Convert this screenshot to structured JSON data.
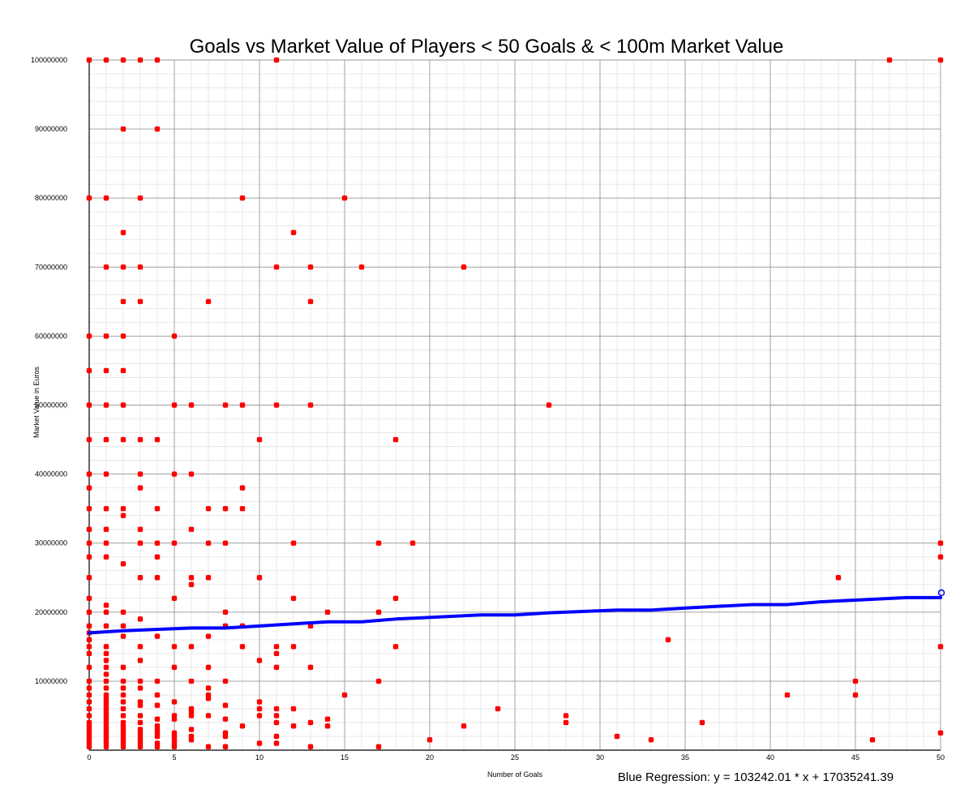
{
  "chart_data": {
    "type": "scatter",
    "title": "Goals vs Market Value of Players < 50 Goals & < 100m Market Value",
    "xlabel": "Number of Goals",
    "ylabel": "Market Value in Euros",
    "xlim": [
      0,
      50
    ],
    "ylim": [
      0,
      100000000
    ],
    "x_ticks": [
      "0",
      "5",
      "10",
      "15",
      "20",
      "25",
      "30",
      "35",
      "40",
      "45",
      "50"
    ],
    "y_ticks": [
      "10000000",
      "20000000",
      "30000000",
      "40000000",
      "50000000",
      "60000000",
      "70000000",
      "80000000",
      "90000000",
      "100000000"
    ],
    "grid": true,
    "annotation": "Blue Regression: y = 103242.01 * x + 17035241.39",
    "colors": {
      "points": "#ff0000",
      "regression": "#0000ff",
      "grid_major": "#9a9a9a",
      "grid_minor": "#e3e3e3"
    },
    "series": [
      {
        "points": [
          [
            0,
            100000000
          ],
          [
            0,
            80000000
          ],
          [
            0,
            60000000
          ],
          [
            0,
            55000000
          ],
          [
            0,
            50000000
          ],
          [
            0,
            45000000
          ],
          [
            0,
            40000000
          ],
          [
            0,
            38000000
          ],
          [
            0,
            35000000
          ],
          [
            0,
            32000000
          ],
          [
            0,
            30000000
          ],
          [
            0,
            28000000
          ],
          [
            0,
            25000000
          ],
          [
            0,
            22000000
          ],
          [
            0,
            20000000
          ],
          [
            0,
            18000000
          ],
          [
            0,
            17000000
          ],
          [
            0,
            16000000
          ],
          [
            0,
            15000000
          ],
          [
            0,
            14000000
          ],
          [
            0,
            12000000
          ],
          [
            0,
            10000000
          ],
          [
            0,
            9000000
          ],
          [
            0,
            8000000
          ],
          [
            0,
            7000000
          ],
          [
            0,
            6000000
          ],
          [
            0,
            5000000
          ],
          [
            0,
            4000000
          ],
          [
            0,
            3500000
          ],
          [
            0,
            3000000
          ],
          [
            0,
            2500000
          ],
          [
            0,
            2000000
          ],
          [
            0,
            1500000
          ],
          [
            0,
            1000000
          ],
          [
            0,
            500000
          ],
          [
            1,
            100000000
          ],
          [
            1,
            80000000
          ],
          [
            1,
            70000000
          ],
          [
            1,
            60000000
          ],
          [
            1,
            55000000
          ],
          [
            1,
            50000000
          ],
          [
            1,
            45000000
          ],
          [
            1,
            40000000
          ],
          [
            1,
            35000000
          ],
          [
            1,
            32000000
          ],
          [
            1,
            30000000
          ],
          [
            1,
            28000000
          ],
          [
            1,
            21000000
          ],
          [
            1,
            20000000
          ],
          [
            1,
            18000000
          ],
          [
            1,
            15000000
          ],
          [
            1,
            14000000
          ],
          [
            1,
            13000000
          ],
          [
            1,
            12000000
          ],
          [
            1,
            11000000
          ],
          [
            1,
            10000000
          ],
          [
            1,
            9000000
          ],
          [
            1,
            8000000
          ],
          [
            1,
            7500000
          ],
          [
            1,
            7000000
          ],
          [
            1,
            6500000
          ],
          [
            1,
            6000000
          ],
          [
            1,
            5500000
          ],
          [
            1,
            5000000
          ],
          [
            1,
            4500000
          ],
          [
            1,
            4000000
          ],
          [
            1,
            3500000
          ],
          [
            1,
            3000000
          ],
          [
            1,
            2500000
          ],
          [
            1,
            2000000
          ],
          [
            1,
            1500000
          ],
          [
            1,
            1000000
          ],
          [
            1,
            500000
          ],
          [
            2,
            100000000
          ],
          [
            2,
            90000000
          ],
          [
            2,
            75000000
          ],
          [
            2,
            70000000
          ],
          [
            2,
            65000000
          ],
          [
            2,
            60000000
          ],
          [
            2,
            55000000
          ],
          [
            2,
            50000000
          ],
          [
            2,
            45000000
          ],
          [
            2,
            35000000
          ],
          [
            2,
            34000000
          ],
          [
            2,
            27000000
          ],
          [
            2,
            20000000
          ],
          [
            2,
            18000000
          ],
          [
            2,
            16500000
          ],
          [
            2,
            12000000
          ],
          [
            2,
            10000000
          ],
          [
            2,
            9000000
          ],
          [
            2,
            8000000
          ],
          [
            2,
            7000000
          ],
          [
            2,
            6000000
          ],
          [
            2,
            5000000
          ],
          [
            2,
            4000000
          ],
          [
            2,
            3500000
          ],
          [
            2,
            3000000
          ],
          [
            2,
            2500000
          ],
          [
            2,
            2000000
          ],
          [
            2,
            1500000
          ],
          [
            2,
            1000000
          ],
          [
            2,
            500000
          ],
          [
            3,
            100000000
          ],
          [
            3,
            80000000
          ],
          [
            3,
            70000000
          ],
          [
            3,
            65000000
          ],
          [
            3,
            45000000
          ],
          [
            3,
            40000000
          ],
          [
            3,
            38000000
          ],
          [
            3,
            32000000
          ],
          [
            3,
            30000000
          ],
          [
            3,
            25000000
          ],
          [
            3,
            19000000
          ],
          [
            3,
            15000000
          ],
          [
            3,
            13000000
          ],
          [
            3,
            10000000
          ],
          [
            3,
            9000000
          ],
          [
            3,
            7000000
          ],
          [
            3,
            6500000
          ],
          [
            3,
            5000000
          ],
          [
            3,
            4000000
          ],
          [
            3,
            3000000
          ],
          [
            3,
            2500000
          ],
          [
            3,
            2000000
          ],
          [
            3,
            1500000
          ],
          [
            3,
            1000000
          ],
          [
            3,
            500000
          ],
          [
            4,
            100000000
          ],
          [
            4,
            90000000
          ],
          [
            4,
            45000000
          ],
          [
            4,
            35000000
          ],
          [
            4,
            30000000
          ],
          [
            4,
            28000000
          ],
          [
            4,
            25000000
          ],
          [
            4,
            16500000
          ],
          [
            4,
            10000000
          ],
          [
            4,
            8000000
          ],
          [
            4,
            6500000
          ],
          [
            4,
            4500000
          ],
          [
            4,
            3500000
          ],
          [
            4,
            3000000
          ],
          [
            4,
            2500000
          ],
          [
            4,
            2000000
          ],
          [
            4,
            1000000
          ],
          [
            4,
            500000
          ],
          [
            5,
            60000000
          ],
          [
            5,
            50000000
          ],
          [
            5,
            40000000
          ],
          [
            5,
            30000000
          ],
          [
            5,
            22000000
          ],
          [
            5,
            15000000
          ],
          [
            5,
            12000000
          ],
          [
            5,
            7000000
          ],
          [
            5,
            5000000
          ],
          [
            5,
            4500000
          ],
          [
            5,
            2500000
          ],
          [
            5,
            2000000
          ],
          [
            5,
            1500000
          ],
          [
            5,
            1000000
          ],
          [
            5,
            500000
          ],
          [
            6,
            50000000
          ],
          [
            6,
            40000000
          ],
          [
            6,
            32000000
          ],
          [
            6,
            25000000
          ],
          [
            6,
            24000000
          ],
          [
            6,
            15000000
          ],
          [
            6,
            10000000
          ],
          [
            6,
            6000000
          ],
          [
            6,
            5500000
          ],
          [
            6,
            5000000
          ],
          [
            6,
            3000000
          ],
          [
            6,
            2000000
          ],
          [
            6,
            1500000
          ],
          [
            7,
            65000000
          ],
          [
            7,
            35000000
          ],
          [
            7,
            30000000
          ],
          [
            7,
            25000000
          ],
          [
            7,
            16500000
          ],
          [
            7,
            12000000
          ],
          [
            7,
            9000000
          ],
          [
            7,
            8000000
          ],
          [
            7,
            7500000
          ],
          [
            7,
            5000000
          ],
          [
            7,
            500000
          ],
          [
            8,
            50000000
          ],
          [
            8,
            35000000
          ],
          [
            8,
            30000000
          ],
          [
            8,
            20000000
          ],
          [
            8,
            18000000
          ],
          [
            8,
            10000000
          ],
          [
            8,
            6500000
          ],
          [
            8,
            4500000
          ],
          [
            8,
            2500000
          ],
          [
            8,
            2000000
          ],
          [
            8,
            500000
          ],
          [
            9,
            80000000
          ],
          [
            9,
            50000000
          ],
          [
            9,
            38000000
          ],
          [
            9,
            35000000
          ],
          [
            9,
            18000000
          ],
          [
            9,
            15000000
          ],
          [
            9,
            3500000
          ],
          [
            10,
            45000000
          ],
          [
            10,
            25000000
          ],
          [
            10,
            13000000
          ],
          [
            10,
            7000000
          ],
          [
            10,
            6000000
          ],
          [
            10,
            5000000
          ],
          [
            10,
            1000000
          ],
          [
            11,
            100000000
          ],
          [
            11,
            70000000
          ],
          [
            11,
            50000000
          ],
          [
            11,
            15000000
          ],
          [
            11,
            14000000
          ],
          [
            11,
            12000000
          ],
          [
            11,
            6000000
          ],
          [
            11,
            5000000
          ],
          [
            11,
            4000000
          ],
          [
            11,
            2000000
          ],
          [
            11,
            1000000
          ],
          [
            12,
            75000000
          ],
          [
            12,
            30000000
          ],
          [
            12,
            22000000
          ],
          [
            12,
            15000000
          ],
          [
            12,
            6000000
          ],
          [
            12,
            3500000
          ],
          [
            13,
            70000000
          ],
          [
            13,
            65000000
          ],
          [
            13,
            50000000
          ],
          [
            13,
            18000000
          ],
          [
            13,
            12000000
          ],
          [
            13,
            4000000
          ],
          [
            13,
            500000
          ],
          [
            14,
            20000000
          ],
          [
            14,
            4500000
          ],
          [
            14,
            3500000
          ],
          [
            15,
            80000000
          ],
          [
            15,
            8000000
          ],
          [
            16,
            70000000
          ],
          [
            17,
            30000000
          ],
          [
            17,
            20000000
          ],
          [
            17,
            10000000
          ],
          [
            17,
            500000
          ],
          [
            18,
            45000000
          ],
          [
            18,
            22000000
          ],
          [
            18,
            15000000
          ],
          [
            19,
            30000000
          ],
          [
            20,
            1500000
          ],
          [
            22,
            70000000
          ],
          [
            22,
            3500000
          ],
          [
            24,
            6000000
          ],
          [
            27,
            50000000
          ],
          [
            28,
            5000000
          ],
          [
            28,
            4000000
          ],
          [
            31,
            2000000
          ],
          [
            33,
            1500000
          ],
          [
            34,
            16000000
          ],
          [
            36,
            4000000
          ],
          [
            41,
            8000000
          ],
          [
            44,
            25000000
          ],
          [
            45,
            10000000
          ],
          [
            45,
            8000000
          ],
          [
            46,
            1500000
          ],
          [
            47,
            100000000
          ],
          [
            50,
            100000000
          ],
          [
            50,
            30000000
          ],
          [
            50,
            28000000
          ],
          [
            50,
            15000000
          ],
          [
            50,
            2500000
          ]
        ]
      },
      {
        "line": [
          [
            0,
            17000000
          ],
          [
            2,
            17300000
          ],
          [
            6,
            17700000
          ],
          [
            8,
            17700000
          ],
          [
            10,
            18000000
          ],
          [
            14,
            18600000
          ],
          [
            16,
            18600000
          ],
          [
            18,
            19000000
          ],
          [
            23,
            19600000
          ],
          [
            25,
            19600000
          ],
          [
            27,
            19900000
          ],
          [
            31,
            20300000
          ],
          [
            33,
            20300000
          ],
          [
            35,
            20600000
          ],
          [
            39,
            21100000
          ],
          [
            41,
            21100000
          ],
          [
            43,
            21500000
          ],
          [
            48,
            22100000
          ],
          [
            50,
            22100000
          ]
        ]
      }
    ]
  }
}
